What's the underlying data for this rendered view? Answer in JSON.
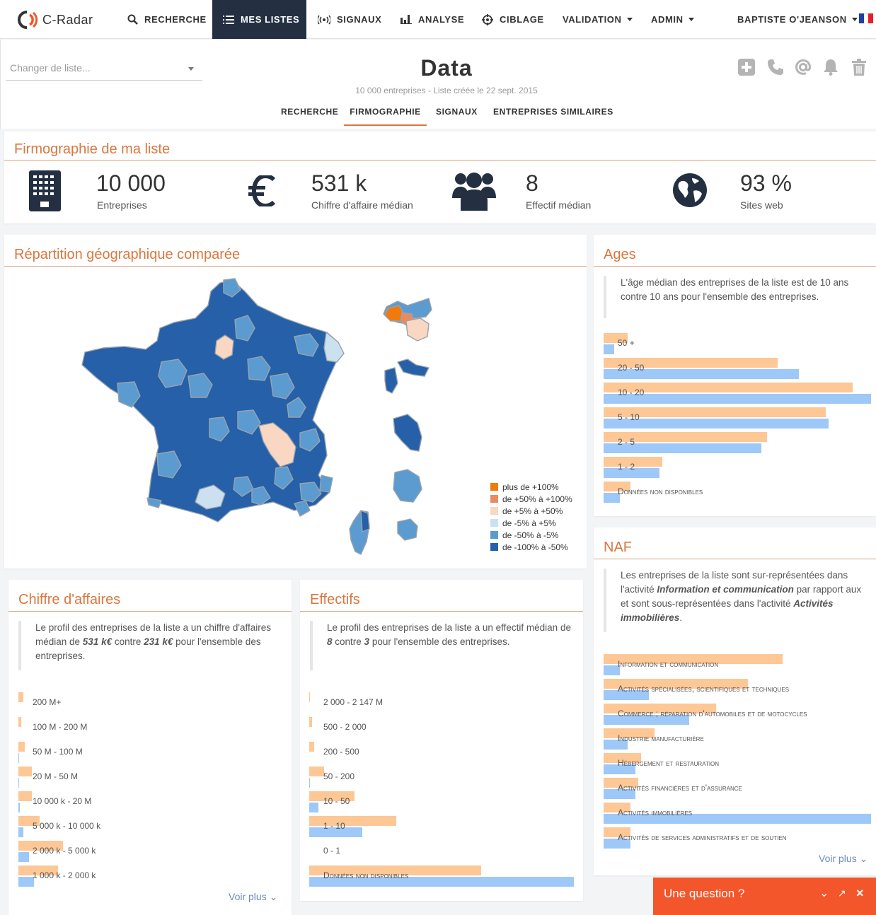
{
  "nav": {
    "brand": "C-Radar",
    "items": [
      {
        "label": "RECHERCHE",
        "icon": "search-icon"
      },
      {
        "label": "MES LISTES",
        "icon": "list-icon",
        "active": true
      },
      {
        "label": "SIGNAUX",
        "icon": "signal-icon"
      },
      {
        "label": "ANALYSE",
        "icon": "bar-chart-icon"
      },
      {
        "label": "CIBLAGE",
        "icon": "target-icon"
      },
      {
        "label": "VALIDATION"
      },
      {
        "label": "ADMIN"
      }
    ],
    "user": "BAPTISTE O'JEANSON",
    "colors": {
      "active_bg": "#243042",
      "accent": "#e0733f"
    }
  },
  "header": {
    "list_placeholder": "Changer de liste...",
    "title": "Data",
    "subtitle": "10 000 entreprises - Liste créée le 22 sept. 2015",
    "tabs": [
      "RECHERCHE",
      "FIRMOGRAPHIE",
      "SIGNAUX",
      "ENTREPRISES SIMILAIRES"
    ],
    "active_tab": "FIRMOGRAPHIE",
    "actions": [
      "plus-square-icon",
      "phone-icon",
      "at-icon",
      "bell-icon",
      "trash-icon"
    ]
  },
  "firmographie": {
    "title": "Firmographie de ma liste",
    "stats": [
      {
        "value": "10 000",
        "label": "Entreprises",
        "icon": "building-icon"
      },
      {
        "value": "531 k",
        "label": "Chiffre d'affaire médian",
        "icon": "euro-icon"
      },
      {
        "value": "8",
        "label": "Effectif médian",
        "icon": "users-icon"
      },
      {
        "value": "93 %",
        "label": "Sites web",
        "icon": "globe-icon"
      }
    ]
  },
  "geo": {
    "title": "Répartition géographique comparée",
    "legend": [
      {
        "label": "plus de +100%",
        "color": "#f17a0c"
      },
      {
        "label": "de +50% à +100%",
        "color": "#e98a63"
      },
      {
        "label": "de +5% à +50%",
        "color": "#fad7c3"
      },
      {
        "label": "de -5% à +5%",
        "color": "#cbe1f0"
      },
      {
        "label": "de -50% à -5%",
        "color": "#5b9bd0"
      },
      {
        "label": "de -100% à -50%",
        "color": "#2560a8"
      }
    ]
  },
  "ages": {
    "title": "Ages",
    "text": "L'âge médian des entreprises de la liste est de 10 ans contre 10 ans pour l'ensemble des entreprises.",
    "chart_data": {
      "type": "bar",
      "categories": [
        "50 +",
        "20 - 50",
        "10 - 20",
        "5 - 10",
        "2 - 5",
        "1 - 2",
        "Données non disponibles"
      ],
      "series": [
        {
          "values": [
            9,
            65,
            93,
            83,
            61,
            22,
            10
          ]
        },
        {
          "values": [
            4,
            73,
            100,
            84,
            59,
            21,
            6
          ]
        }
      ]
    }
  },
  "naf": {
    "title": "NAF",
    "text_pre": "Les entreprises de la liste sont sur-représentées dans l'activité ",
    "text_b1": "Information et communication",
    "text_mid": " par rapport aux et sont sous-représentées dans l'activité ",
    "text_b2": "Activités immobilières",
    "text_post": ".",
    "chart_data": {
      "type": "bar",
      "categories": [
        "Information et communication",
        "Activités spécialisées, scientifiques et techniques",
        "Commerce ; réparation d'automobiles et de motocycles",
        "Industrie manufacturière",
        "Hébergement et restauration",
        "Activités financières et d'assurance",
        "Activités immobilières",
        "Activités de services administratifs et de soutien"
      ],
      "series": [
        {
          "values": [
            67,
            54,
            42,
            19,
            14,
            13,
            10,
            10
          ]
        },
        {
          "values": [
            6,
            17,
            32,
            9,
            12,
            12,
            100,
            10
          ]
        }
      ]
    },
    "more": "Voir plus"
  },
  "ca": {
    "title": "Chiffre d'affaires",
    "text_pre": "Le profil des entreprises de la liste a un chiffre d'affaires médian de ",
    "text_b1": "531 k€",
    "text_mid": " contre ",
    "text_b2": "231 k€",
    "text_post": " pour l'ensemble des entreprises.",
    "chart_data": {
      "type": "bar",
      "categories": [
        "200 M+",
        "100 M - 200 M",
        "50 M - 100 M",
        "20 M - 50 M",
        "10 000 k - 20 M",
        "5 000 k - 10 000 k",
        "2 000 k - 5 000 k",
        "1 000 k - 2 000 k"
      ],
      "series": [
        {
          "values": [
            2,
            1,
            2.5,
            5,
            5,
            8,
            17,
            15
          ]
        },
        {
          "values": [
            0,
            0,
            0.4,
            0.4,
            0.5,
            2,
            4,
            6
          ]
        }
      ]
    },
    "more": "Voir plus"
  },
  "eff": {
    "title": "Effectifs",
    "text_pre": "Le profil des entreprises de la liste a un effectif médian de ",
    "text_b1": "8",
    "text_mid": " contre ",
    "text_b2": "3",
    "text_post": " pour l'ensemble des entreprises.",
    "chart_data": {
      "type": "bar",
      "categories": [
        "2 000 - 2 147 M",
        "500 - 2 000",
        "200 - 500",
        "50 - 200",
        "10 - 50",
        "1 - 10",
        "0 - 1",
        "Données non disponibles"
      ],
      "series": [
        {
          "values": [
            0.3,
            1,
            2,
            5.5,
            17,
            33,
            0,
            65
          ]
        },
        {
          "values": [
            0,
            0,
            0,
            0.2,
            3.5,
            20,
            0,
            100
          ]
        }
      ]
    }
  },
  "chat": {
    "label": "Une question ?"
  }
}
